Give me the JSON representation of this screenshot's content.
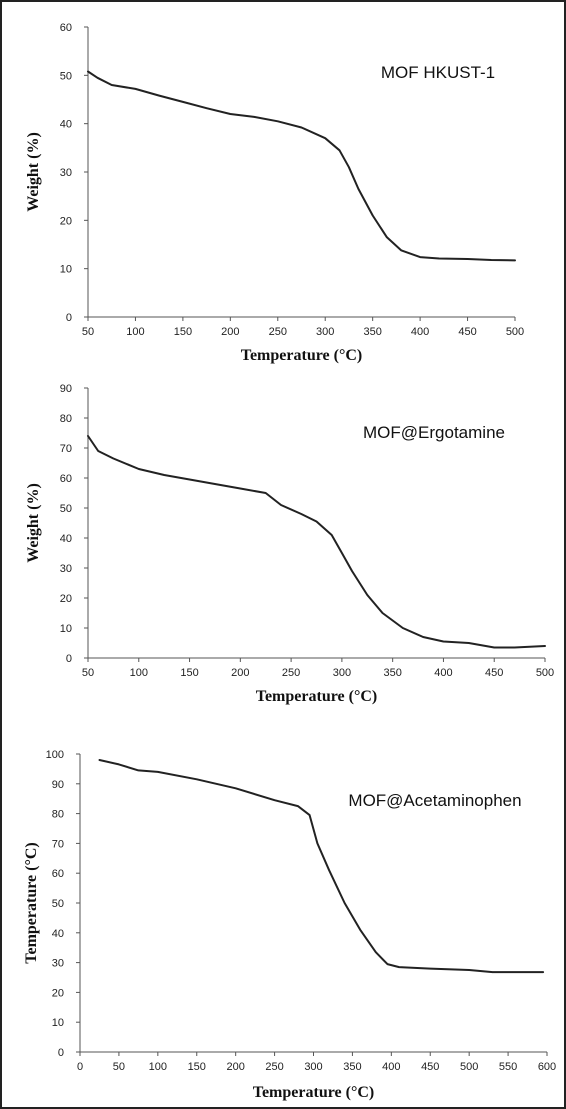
{
  "chart_data": [
    {
      "type": "line",
      "title": "MOF HKUST-1",
      "xlabel": "Temperature (°C)",
      "ylabel": "Weight (%)",
      "xlim": [
        50,
        500
      ],
      "ylim": [
        0,
        60
      ],
      "xticks": [
        "50",
        "100",
        "150",
        "200",
        "250",
        "300",
        "350",
        "400",
        "450",
        "500"
      ],
      "yticks": [
        "0",
        "10",
        "20",
        "30",
        "40",
        "50",
        "60"
      ],
      "grid": false,
      "line_color": "#222222",
      "series": [
        {
          "x": [
            50,
            60,
            75,
            100,
            125,
            150,
            175,
            200,
            225,
            250,
            275,
            300,
            315,
            325,
            335,
            350,
            365,
            380,
            400,
            420,
            450,
            475,
            500
          ],
          "values": [
            50.8,
            49.5,
            48.0,
            47.2,
            45.8,
            44.5,
            43.2,
            42.0,
            41.4,
            40.5,
            39.2,
            37.0,
            34.5,
            31.0,
            26.5,
            21.0,
            16.5,
            13.8,
            12.4,
            12.1,
            12.0,
            11.8,
            11.7
          ]
        }
      ]
    },
    {
      "type": "line",
      "title": "MOF@Ergotamine",
      "xlabel": "Temperature (°C)",
      "ylabel": "Weight (%)",
      "xlim": [
        50,
        500
      ],
      "ylim": [
        0,
        90
      ],
      "xticks": [
        "50",
        "100",
        "150",
        "200",
        "250",
        "300",
        "350",
        "400",
        "450",
        "500"
      ],
      "yticks": [
        "0",
        "10",
        "20",
        "30",
        "40",
        "50",
        "60",
        "70",
        "80",
        "90"
      ],
      "grid": false,
      "line_color": "#222222",
      "series": [
        {
          "x": [
            50,
            60,
            75,
            100,
            125,
            150,
            175,
            200,
            225,
            240,
            260,
            275,
            290,
            300,
            310,
            325,
            340,
            360,
            380,
            400,
            425,
            450,
            470,
            500
          ],
          "values": [
            74.0,
            69.0,
            66.5,
            63.0,
            61.0,
            59.5,
            58.0,
            56.5,
            55.0,
            51.0,
            48.0,
            45.5,
            41.0,
            35.0,
            29.0,
            21.0,
            15.0,
            10.0,
            7.0,
            5.5,
            5.0,
            3.5,
            3.5,
            4.0
          ]
        }
      ]
    },
    {
      "type": "line",
      "title": "MOF@Acetaminophen",
      "xlabel": "Temperature (°C)",
      "ylabel": "Temperature (°C)",
      "xlim": [
        0,
        600
      ],
      "ylim": [
        0,
        100
      ],
      "xticks": [
        "0",
        "50",
        "100",
        "150",
        "200",
        "250",
        "300",
        "350",
        "400",
        "450",
        "500",
        "550",
        "600"
      ],
      "yticks": [
        "0",
        "10",
        "20",
        "30",
        "40",
        "50",
        "60",
        "70",
        "80",
        "90",
        "100"
      ],
      "grid": false,
      "line_color": "#222222",
      "series": [
        {
          "x": [
            25,
            50,
            75,
            100,
            150,
            200,
            250,
            280,
            295,
            305,
            320,
            340,
            360,
            380,
            395,
            410,
            450,
            500,
            530,
            560,
            595
          ],
          "values": [
            98.0,
            96.5,
            94.5,
            94.0,
            91.5,
            88.5,
            84.5,
            82.5,
            79.5,
            70.0,
            61.0,
            50.0,
            41.0,
            33.5,
            29.5,
            28.5,
            28.0,
            27.5,
            26.8,
            26.8,
            26.8
          ]
        }
      ]
    }
  ]
}
